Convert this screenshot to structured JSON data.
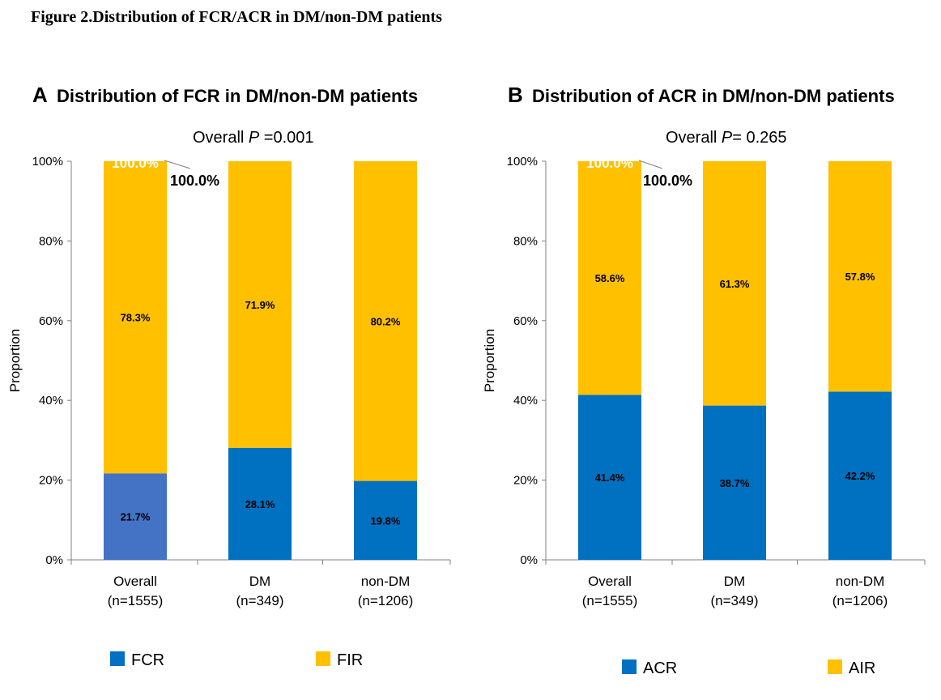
{
  "figure_title": "Figure 2.Distribution of FCR/ACR in DM/non-DM patients",
  "chart_data": [
    {
      "type": "bar",
      "stacked": true,
      "letter": "A",
      "title": "Distribution of FCR in DM/non-DM patients",
      "subtitle_prefix": "Overall ",
      "subtitle_p": "P",
      "subtitle_value": " =0.001",
      "ylabel": "Proportion",
      "ylim": [
        0,
        100
      ],
      "yticks": [
        "0%",
        "20%",
        "40%",
        "60%",
        "80%",
        "100%"
      ],
      "categories": [
        {
          "name": "Overall",
          "n": "(n=1555)"
        },
        {
          "name": "DM",
          "n": "(n=349)"
        },
        {
          "name": "non-DM",
          "n": "(n=1206)"
        }
      ],
      "series": [
        {
          "name": "FCR",
          "color": "#0070C0",
          "values": [
            21.7,
            28.1,
            19.8
          ],
          "labels": [
            "21.7%",
            "28.1%",
            "19.8%"
          ]
        },
        {
          "name": "FIR",
          "color": "#FFC000",
          "values": [
            78.3,
            71.9,
            80.2
          ],
          "labels": [
            "78.3%",
            "71.9%",
            "80.2%"
          ]
        }
      ],
      "first_bar_bottom_color": "#4472C4",
      "top_label": "100.0%",
      "callout_label": "100.0%"
    },
    {
      "type": "bar",
      "stacked": true,
      "letter": "B",
      "title": "Distribution of ACR in DM/non-DM patients",
      "subtitle_prefix": "Overall ",
      "subtitle_p": "P",
      "subtitle_value": "= 0.265",
      "ylabel": "Proportion",
      "ylim": [
        0,
        100
      ],
      "yticks": [
        "0%",
        "20%",
        "40%",
        "60%",
        "80%",
        "100%"
      ],
      "categories": [
        {
          "name": "Overall",
          "n": "(n=1555)"
        },
        {
          "name": "DM",
          "n": "(n=349)"
        },
        {
          "name": "non-DM",
          "n": "(n=1206)"
        }
      ],
      "series": [
        {
          "name": "ACR",
          "color": "#0070C0",
          "values": [
            41.4,
            38.7,
            42.2
          ],
          "labels": [
            "41.4%",
            "38.7%",
            "42.2%"
          ]
        },
        {
          "name": "AIR",
          "color": "#FFC000",
          "values": [
            58.6,
            61.3,
            57.8
          ],
          "labels": [
            "58.6%",
            "61.3%",
            "57.8%"
          ]
        }
      ],
      "top_label": "100.0%",
      "callout_label": "100.0%"
    }
  ]
}
